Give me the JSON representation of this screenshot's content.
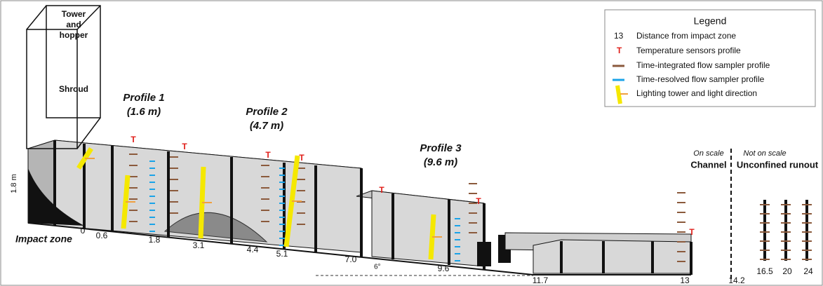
{
  "tower": {
    "label": [
      "Tower",
      "and",
      "hopper"
    ],
    "shroud": "Shroud"
  },
  "height_label": "1.8 m",
  "impact_zone": "Impact zone",
  "profiles": [
    {
      "name": "Profile 1",
      "distance": "(1.6 m)"
    },
    {
      "name": "Profile 2",
      "distance": "(4.7 m)"
    },
    {
      "name": "Profile 3",
      "distance": "(9.6 m)"
    }
  ],
  "distances": [
    "0",
    "0.6",
    "1.8",
    "3.1",
    "4.4",
    "5.1",
    "7.0",
    "9.6",
    "11.7",
    "13",
    "14.2",
    "16.5",
    "20",
    "24"
  ],
  "slope": "6°",
  "scale": {
    "on_scale": "On scale",
    "channel": "Channel",
    "not_on_scale": "Not on scale",
    "runout": "Unconfined runout"
  },
  "legend": {
    "title": "Legend",
    "items": [
      {
        "symbol": "13",
        "label": "Distance from impact zone"
      },
      {
        "symbol": "T",
        "label": "Temperature sensors profile"
      },
      {
        "label": "Time-integrated flow sampler profile"
      },
      {
        "label": "Time-resolved flow sampler profile"
      },
      {
        "label": "Lighting tower and light direction"
      }
    ]
  }
}
